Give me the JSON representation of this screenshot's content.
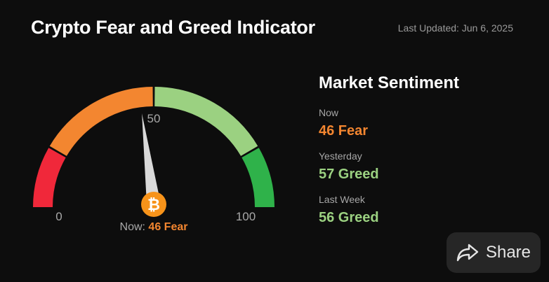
{
  "header": {
    "title": "Crypto Fear and Greed Indicator",
    "last_updated": "Last Updated: Jun 6, 2025"
  },
  "gauge": {
    "min_label": "0",
    "mid_label": "50",
    "max_label": "100",
    "value": 46,
    "now_prefix": "Now:",
    "now_value": "46 Fear",
    "coin_icon": "bitcoin-icon",
    "segment_colors": [
      "#f0283a",
      "#f38630",
      "#9bd181",
      "#2fb24a"
    ]
  },
  "sentiment": {
    "title": "Market Sentiment",
    "items": [
      {
        "label": "Now",
        "value": "46 Fear",
        "color": "#f38630"
      },
      {
        "label": "Yesterday",
        "value": "57 Greed",
        "color": "#9bd181"
      },
      {
        "label": "Last Week",
        "value": "56 Greed",
        "color": "#9bd181"
      }
    ]
  },
  "share": {
    "label": "Share",
    "icon": "share-arrow-icon"
  }
}
